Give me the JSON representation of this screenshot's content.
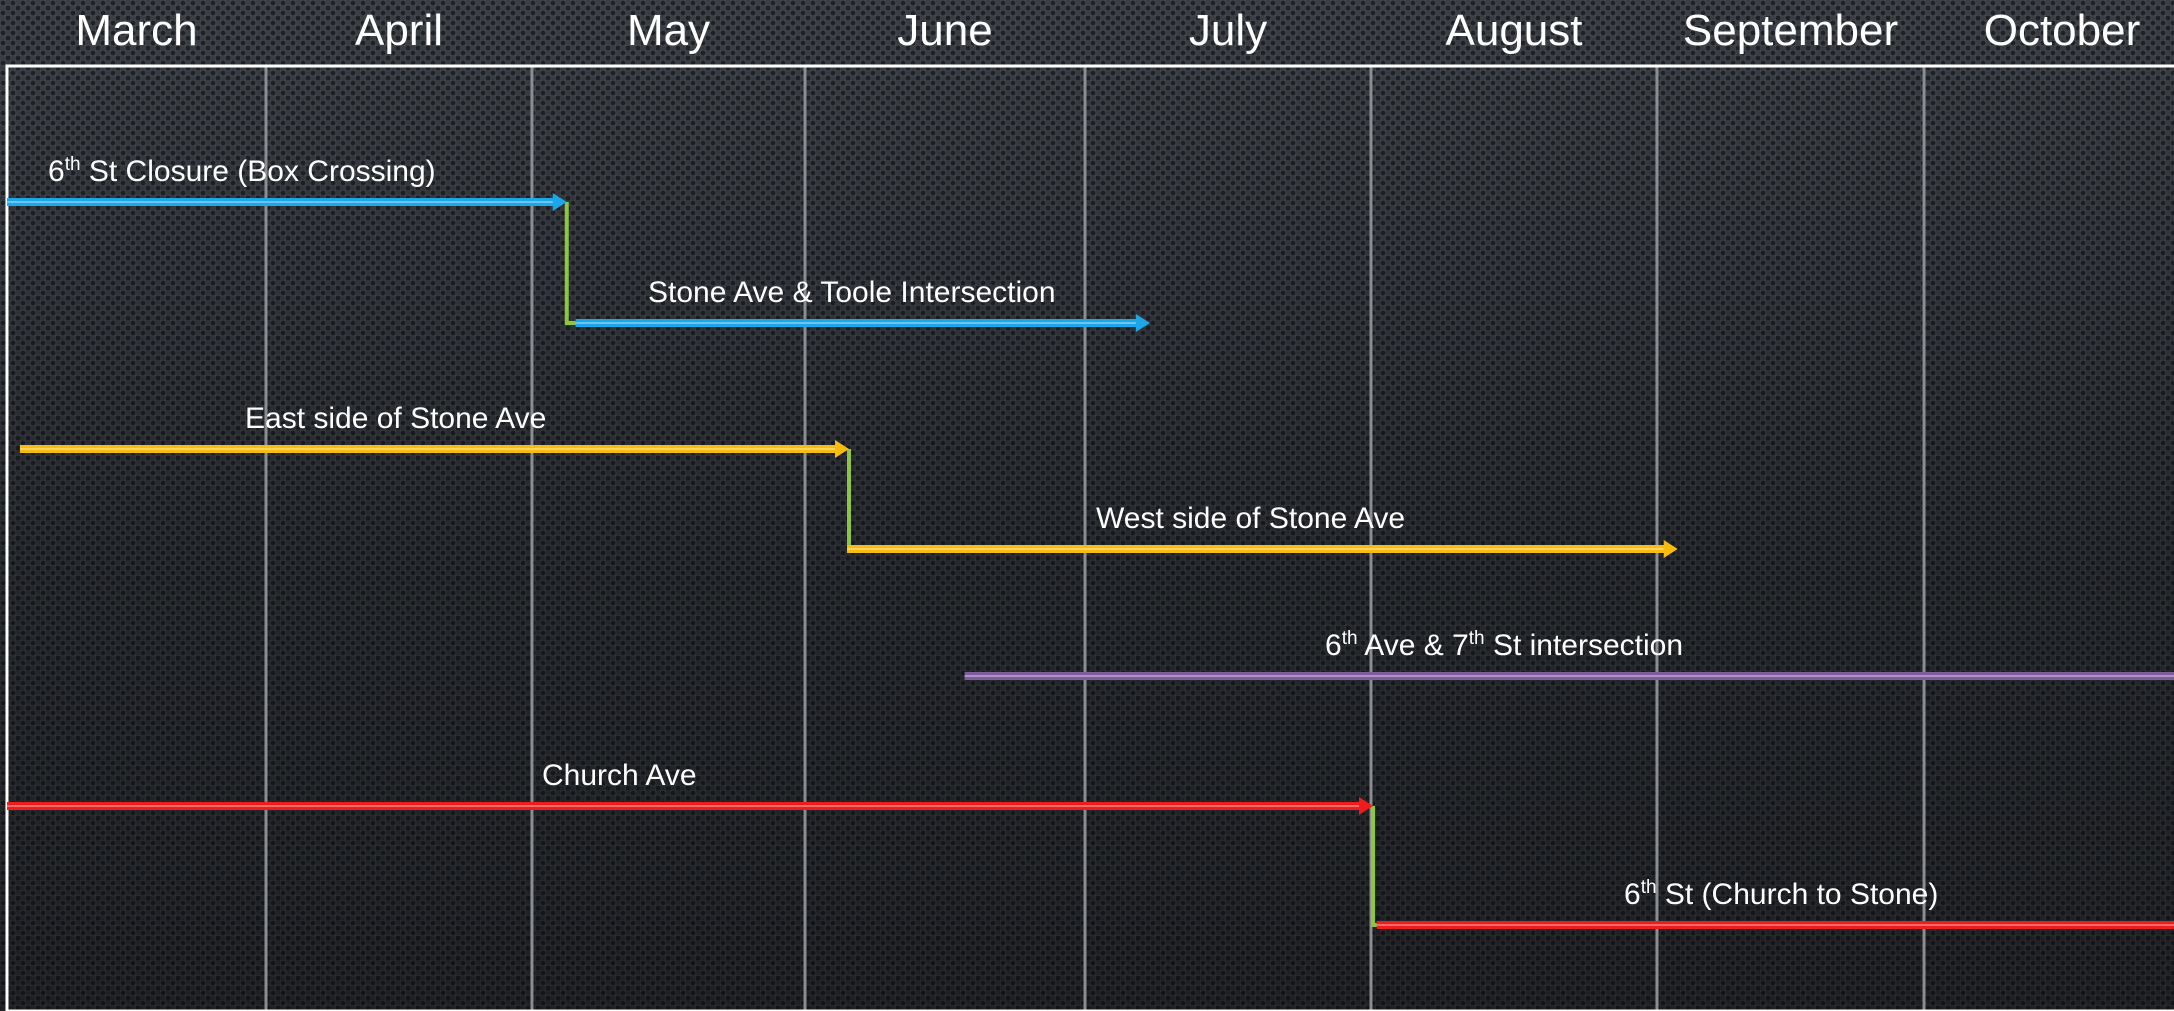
{
  "months": [
    "March",
    "April",
    "May",
    "June",
    "July",
    "August",
    "September",
    "October"
  ],
  "colors": {
    "background": "#2a2d33",
    "frame": "#ffffff",
    "gridline": "#8a8d92",
    "blue": "#1ba7e8",
    "yellow": "#f6bd0e",
    "purple": "#7e5c9e",
    "red": "#ee1c1c",
    "connector": "#8dc63f"
  },
  "tasks": [
    {
      "id": "sixth-st-closure",
      "label": [
        "6",
        "th",
        " St Closure (Box Crossing)"
      ],
      "start": 0.0,
      "end": 2.12,
      "color": "blue"
    },
    {
      "id": "stone-toole",
      "label": [
        "Stone Ave & Toole Intersection"
      ],
      "start": 2.16,
      "end": 4.22,
      "color": "blue"
    },
    {
      "id": "east-stone",
      "label": [
        "East side of Stone Ave"
      ],
      "start": 0.05,
      "end": 3.15,
      "color": "yellow"
    },
    {
      "id": "west-stone",
      "label": [
        "West side of Stone Ave"
      ],
      "start": 3.15,
      "end": 6.07,
      "color": "yellow"
    },
    {
      "id": "sixth-seventh",
      "label": [
        "6",
        "th",
        " Ave & 7",
        "th",
        " St intersection"
      ],
      "start": 3.57,
      "end": 8.2,
      "color": "purple"
    },
    {
      "id": "church-ave",
      "label": [
        "Church Ave"
      ],
      "start": 0.0,
      "end": 5.0,
      "color": "red"
    },
    {
      "id": "sixth-church-stone",
      "label": [
        "6",
        "th",
        " St (Church to Stone)"
      ],
      "start": 5.02,
      "end": 8.2,
      "color": "red"
    }
  ],
  "links": [
    {
      "from": "sixth-st-closure",
      "to": "stone-toole"
    },
    {
      "from": "east-stone",
      "to": "west-stone"
    },
    {
      "from": "church-ave",
      "to": "sixth-church-stone"
    }
  ]
}
